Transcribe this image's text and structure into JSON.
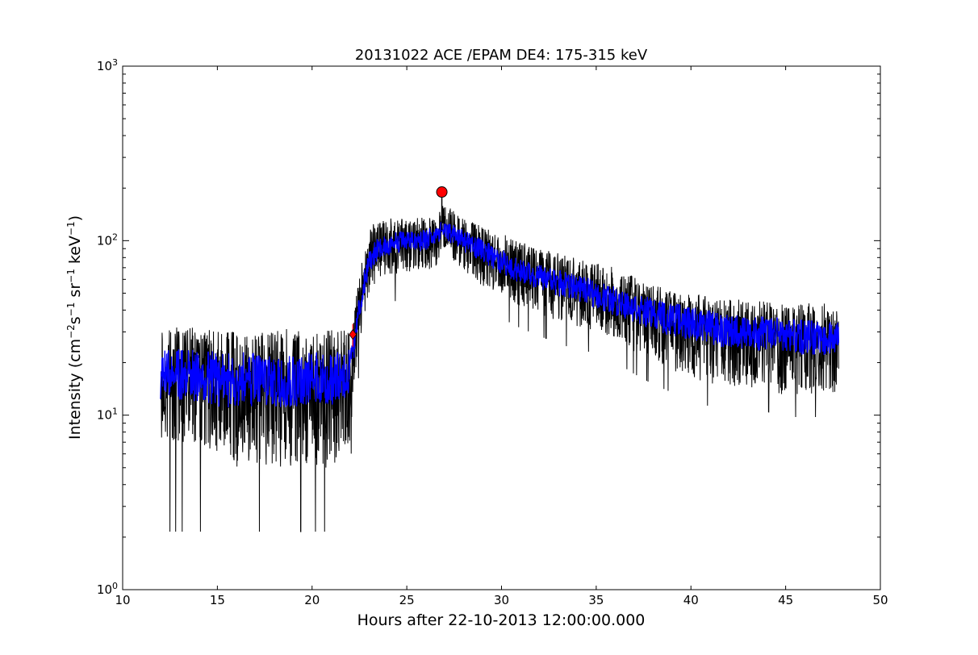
{
  "chart_data": {
    "type": "line",
    "title": "20131022 ACE /EPAM DE4: 175-315 keV",
    "xlabel": "Hours after 22-10-2013 12:00:00.000",
    "ylabel": "Intensity (cm$^{-2}$s$^{-1}$sr$^{-1}$keV$^{-1}$)",
    "ylabel_parts": [
      "Intensity (cm",
      "−2",
      "s",
      "−1",
      " sr",
      "−1",
      " keV",
      "−1",
      ")"
    ],
    "xlim": [
      10,
      50
    ],
    "ylim": [
      1,
      1000
    ],
    "yscale": "log",
    "grid": false,
    "xticks": [
      10,
      15,
      20,
      25,
      30,
      35,
      40,
      45,
      50
    ],
    "xtick_labels": [
      "10",
      "15",
      "20",
      "25",
      "30",
      "35",
      "40",
      "45",
      "50"
    ],
    "yticks": [
      1,
      10,
      100,
      1000
    ],
    "ytick_labels": [
      {
        "base": "10",
        "exp": "0"
      },
      {
        "base": "10",
        "exp": "1"
      },
      {
        "base": "10",
        "exp": "2"
      },
      {
        "base": "10",
        "exp": "3"
      }
    ],
    "series": [
      {
        "role": "raw",
        "color": "#000000",
        "x": [
          12.0,
          13.0,
          14.0,
          15.0,
          16.0,
          17.0,
          18.0,
          19.0,
          20.0,
          21.0,
          22.0,
          22.3,
          22.6,
          23.0,
          23.5,
          24.0,
          24.5,
          25.0,
          25.5,
          26.0,
          26.5,
          26.9,
          27.5,
          28.0,
          29.0,
          30.0,
          31.0,
          32.0,
          33.0,
          34.0,
          35.0,
          36.0,
          37.0,
          38.0,
          39.0,
          40.0,
          41.0,
          42.0,
          43.0,
          44.0,
          45.0,
          46.0,
          47.0,
          47.8
        ],
        "y": [
          17,
          17,
          17,
          16,
          16,
          16,
          16,
          16,
          16,
          16,
          18,
          30,
          48,
          75,
          90,
          95,
          98,
          100,
          100,
          102,
          105,
          115,
          110,
          100,
          88,
          75,
          67,
          62,
          58,
          54,
          50,
          46,
          42,
          39,
          36,
          34,
          32,
          31,
          30,
          30,
          29,
          29,
          28,
          28
        ],
        "spread_low": [
          7,
          7,
          7,
          6,
          5,
          5,
          5,
          5,
          5,
          5,
          7,
          18,
          30,
          50,
          60,
          62,
          65,
          65,
          65,
          68,
          70,
          85,
          75,
          68,
          55,
          48,
          42,
          38,
          34,
          32,
          30,
          27,
          23,
          20,
          18,
          16,
          15,
          15,
          14,
          14,
          13,
          13,
          13,
          12
        ],
        "spread_high": [
          32,
          32,
          32,
          30,
          30,
          30,
          30,
          32,
          32,
          32,
          30,
          45,
          80,
          120,
          130,
          135,
          135,
          130,
          135,
          140,
          140,
          160,
          150,
          135,
          120,
          110,
          100,
          92,
          85,
          80,
          75,
          70,
          62,
          56,
          52,
          50,
          48,
          46,
          46,
          45,
          45,
          44,
          44,
          40
        ]
      },
      {
        "role": "smoothed",
        "color": "#0000ff",
        "x": [
          12.0,
          13.0,
          14.0,
          15.0,
          16.0,
          17.0,
          18.0,
          19.0,
          20.0,
          21.0,
          22.0,
          22.3,
          22.6,
          23.0,
          23.5,
          24.0,
          24.5,
          25.0,
          25.5,
          26.0,
          26.5,
          26.9,
          27.5,
          28.0,
          29.0,
          30.0,
          31.0,
          32.0,
          33.0,
          34.0,
          35.0,
          36.0,
          37.0,
          38.0,
          39.0,
          40.0,
          41.0,
          42.0,
          43.0,
          44.0,
          45.0,
          46.0,
          47.0,
          47.8
        ],
        "y": [
          17,
          17,
          17,
          16,
          16,
          16,
          16,
          16,
          16,
          16,
          18,
          30,
          48,
          75,
          90,
          95,
          98,
          100,
          100,
          102,
          105,
          115,
          110,
          100,
          88,
          75,
          67,
          62,
          58,
          54,
          50,
          46,
          42,
          39,
          36,
          34,
          32,
          31,
          30,
          30,
          29,
          29,
          28,
          28
        ],
        "spread_low": [
          12,
          12,
          12,
          11,
          11,
          11,
          11,
          11,
          11,
          11,
          13,
          25,
          40,
          65,
          78,
          82,
          85,
          86,
          86,
          88,
          90,
          100,
          95,
          86,
          75,
          64,
          57,
          52,
          48,
          45,
          41,
          37,
          34,
          31,
          28,
          27,
          25,
          24,
          24,
          23,
          23,
          22,
          22,
          22
        ],
        "spread_high": [
          24,
          24,
          24,
          23,
          23,
          23,
          23,
          23,
          23,
          23,
          24,
          36,
          58,
          88,
          105,
          110,
          113,
          115,
          115,
          118,
          122,
          130,
          125,
          115,
          102,
          88,
          78,
          73,
          68,
          64,
          59,
          55,
          50,
          47,
          44,
          42,
          40,
          38,
          37,
          37,
          36,
          36,
          35,
          35
        ]
      }
    ],
    "markers": [
      {
        "x": 26.85,
        "y": 190,
        "shape": "circle",
        "color": "#ff0000"
      },
      {
        "x": 22.15,
        "y": 29,
        "shape": "diamond",
        "color": "#ff0000"
      }
    ]
  }
}
